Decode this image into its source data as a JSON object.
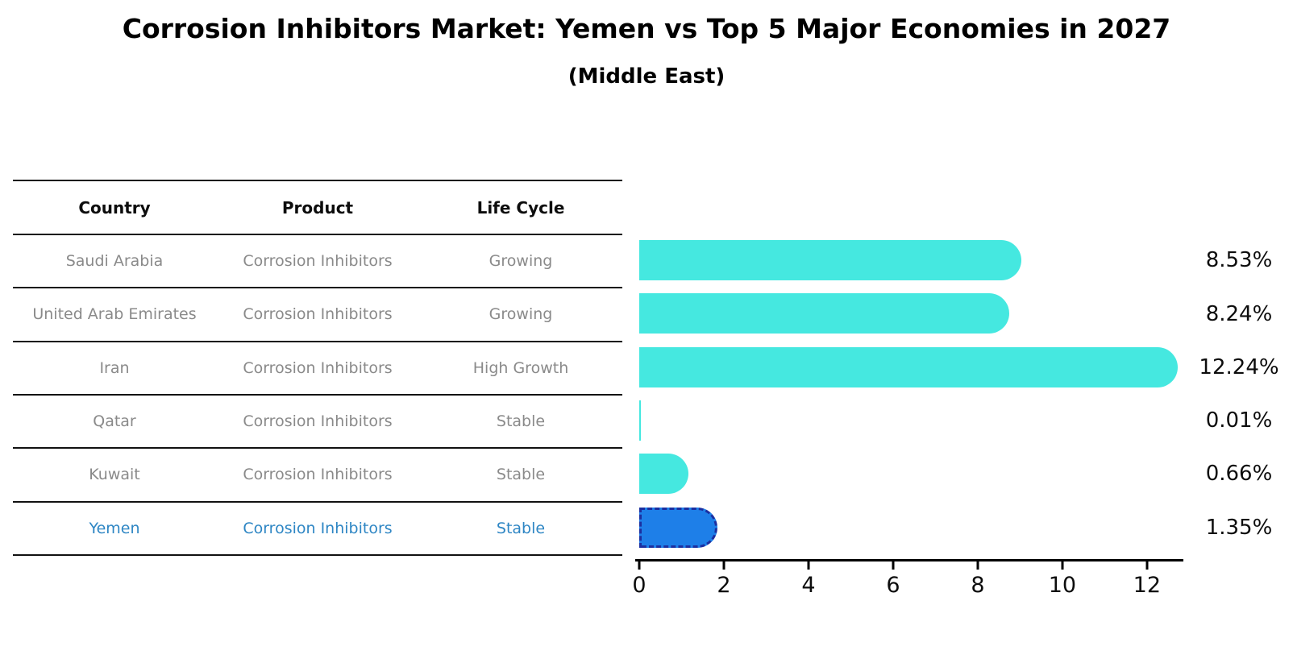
{
  "title": "Corrosion Inhibitors Market: Yemen vs Top 5 Major Economies in 2027",
  "subtitle": "(Middle East)",
  "table": {
    "headers": [
      "Country",
      "Product",
      "Life Cycle"
    ],
    "rows": [
      {
        "country": "Saudi Arabia",
        "product": "Corrosion Inhibitors",
        "life_cycle": "Growing",
        "highlight": false
      },
      {
        "country": "United Arab Emirates",
        "product": "Corrosion Inhibitors",
        "life_cycle": "Growing",
        "highlight": false
      },
      {
        "country": "Iran",
        "product": "Corrosion Inhibitors",
        "life_cycle": "High Growth",
        "highlight": false
      },
      {
        "country": "Qatar",
        "product": "Corrosion Inhibitors",
        "life_cycle": "Stable",
        "highlight": false
      },
      {
        "country": "Kuwait",
        "product": "Corrosion Inhibitors",
        "life_cycle": "Stable",
        "highlight": false
      },
      {
        "country": "Yemen",
        "product": "Corrosion Inhibitors",
        "life_cycle": "Stable",
        "highlight": true
      }
    ]
  },
  "chart_data": {
    "type": "bar",
    "orientation": "horizontal",
    "title": "Corrosion Inhibitors Market: Yemen vs Top 5 Major Economies in 2027",
    "subtitle": "(Middle East)",
    "categories": [
      "Saudi Arabia",
      "United Arab Emirates",
      "Iran",
      "Qatar",
      "Kuwait",
      "Yemen"
    ],
    "values": [
      8.53,
      8.24,
      12.24,
      0.01,
      0.66,
      1.35
    ],
    "value_labels": [
      "8.53%",
      "8.24%",
      "12.24%",
      "0.01%",
      "0.66%",
      "1.35%"
    ],
    "x_ticks": [
      0,
      2,
      4,
      6,
      8,
      10,
      12
    ],
    "x_max": 12.86,
    "grid": false,
    "legend": "none",
    "bar_color": "#45E8E0",
    "highlight_index": 5,
    "highlight_color": "#1E7FE8",
    "highlight_border_color": "#1B2FA0"
  },
  "colors": {
    "text": "#0d0d0d",
    "muted_text": "#8a8a8a",
    "highlight_text": "#2E86C4",
    "rule": "#111111"
  }
}
